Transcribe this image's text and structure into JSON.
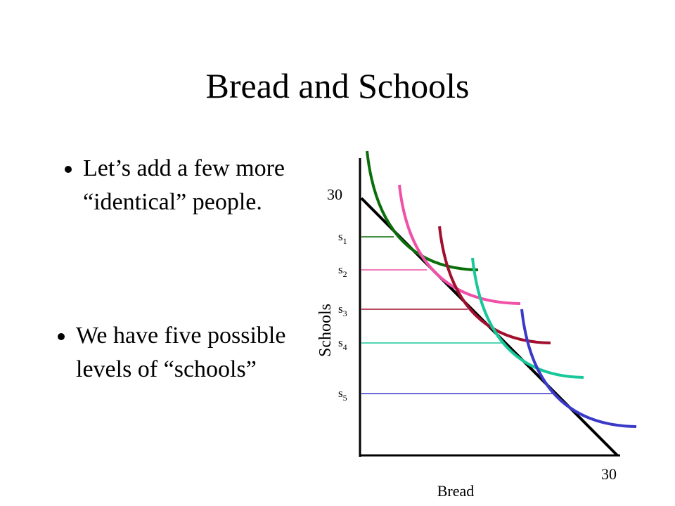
{
  "header": {
    "title": "Bread and Schools"
  },
  "bullets": [
    "Let’s add a few more “identical” people.",
    "We have five possible levels of “schools”"
  ],
  "diagram": {
    "y_axis_label": "Schools",
    "x_axis_label": "Bread",
    "y_max_label": "30",
    "x_max_label": "30",
    "levels": [
      {
        "base": "s",
        "sub": "1"
      },
      {
        "base": "s",
        "sub": "2"
      },
      {
        "base": "s",
        "sub": "3"
      },
      {
        "base": "s",
        "sub": "4"
      },
      {
        "base": "s",
        "sub": "5"
      }
    ]
  }
}
